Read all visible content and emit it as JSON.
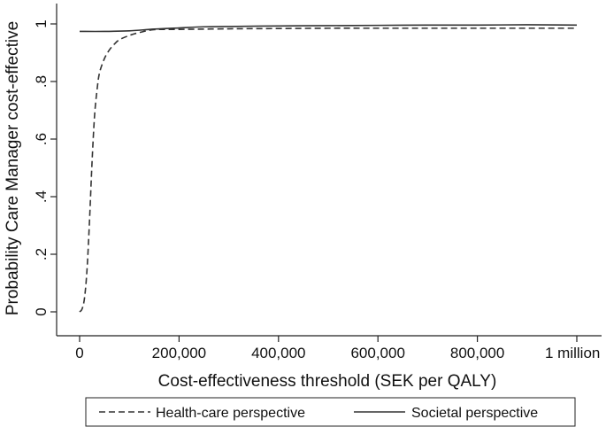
{
  "chart_data": {
    "type": "line",
    "xlabel": "Cost-effectiveness threshold (SEK per QALY)",
    "ylabel": "Probability Care Manager cost-effective",
    "xlim": [
      0,
      1000000
    ],
    "ylim": [
      0,
      1
    ],
    "x_ticks": [
      {
        "value": 0,
        "label": "0"
      },
      {
        "value": 200000,
        "label": "200,000"
      },
      {
        "value": 400000,
        "label": "400,000"
      },
      {
        "value": 600000,
        "label": "600,000"
      },
      {
        "value": 800000,
        "label": "800,000"
      },
      {
        "value": 1000000,
        "label": "1 million"
      }
    ],
    "y_ticks": [
      {
        "value": 0,
        "label": "0"
      },
      {
        "value": 0.2,
        "label": ".2"
      },
      {
        "value": 0.4,
        "label": ".4"
      },
      {
        "value": 0.6,
        "label": ".6"
      },
      {
        "value": 0.8,
        "label": ".8"
      },
      {
        "value": 1,
        "label": "1"
      }
    ],
    "grid": false,
    "legend_position": "bottom",
    "series": [
      {
        "name": "Health-care perspective",
        "style": "dashed",
        "color": "#333333",
        "x": [
          0,
          5000,
          10000,
          15000,
          20000,
          25000,
          30000,
          35000,
          40000,
          50000,
          60000,
          70000,
          80000,
          100000,
          120000,
          150000,
          200000,
          300000,
          400000,
          500000,
          600000,
          800000,
          1000000
        ],
        "y": [
          0.0,
          0.01,
          0.05,
          0.15,
          0.32,
          0.52,
          0.68,
          0.77,
          0.83,
          0.88,
          0.91,
          0.93,
          0.945,
          0.96,
          0.97,
          0.98,
          0.981,
          0.983,
          0.984,
          0.985,
          0.985,
          0.985,
          0.985
        ]
      },
      {
        "name": "Societal perspective",
        "style": "solid",
        "color": "#333333",
        "x": [
          0,
          50000,
          100000,
          150000,
          200000,
          250000,
          300000,
          400000,
          500000,
          600000,
          700000,
          800000,
          900000,
          1000000
        ],
        "y": [
          0.974,
          0.974,
          0.976,
          0.982,
          0.986,
          0.99,
          0.991,
          0.993,
          0.994,
          0.995,
          0.996,
          0.996,
          0.997,
          0.996
        ]
      }
    ]
  }
}
